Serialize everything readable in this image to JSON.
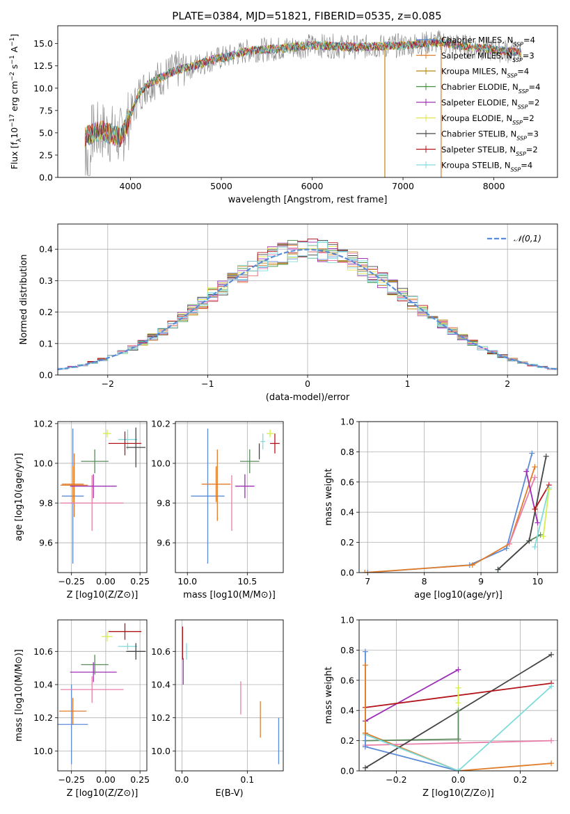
{
  "figure_title": "PLATE=0384, MJD=51821, FIBERID=0535, z=0.085",
  "colors": {
    "chabrier_miles": "#5b8bd6",
    "salpeter_miles": "#e07b28",
    "kroupa_miles": "#b8860b",
    "chabrier_elodie": "#3f8f3f",
    "salpeter_elodie": "#9d2fb5",
    "kroupa_elodie": "#e3e34a",
    "chabrier_stelib": "#444444",
    "salpeter_stelib": "#b3141a",
    "kroupa_stelib": "#7fdbdb",
    "pink": "#e87ea8",
    "lime": "#d4ee4a",
    "darkgreen": "#5a8a5a",
    "data_gray": "#7f7f7f"
  },
  "chart_data": [
    {
      "id": "spectrum",
      "type": "line",
      "title": "PLATE=0384, MJD=51821, FIBERID=0535, z=0.085",
      "xlabel": "wavelength [Angstrom, rest frame]",
      "ylabel": "Flux [f_λ10^-17 erg cm^-2 s^-1 A^-1]",
      "xlim": [
        3200,
        8700
      ],
      "ylim": [
        0,
        17
      ],
      "xticks": [
        "4000",
        "5000",
        "6000",
        "7000",
        "8000"
      ],
      "yticks": [
        "0.0",
        "2.5",
        "5.0",
        "7.5",
        "10.0",
        "12.5",
        "15.0"
      ],
      "legend": {
        "position": "upper right",
        "entries": [
          "Chabrier MILES, N_SSP=4",
          "Salpeter MILES, N_SSP=3",
          "Kroupa MILES, N_SSP=4",
          "Chabrier ELODIE, N_SSP=4",
          "Salpeter ELODIE, N_SSP=2",
          "Kroupa ELODIE, N_SSP=2",
          "Chabrier STELIB, N_SSP=3",
          "Salpeter STELIB, N_SSP=2",
          "Kroupa STELIB, N_SSP=4"
        ]
      },
      "continuum": {
        "x": [
          3500,
          3600,
          3700,
          3800,
          3900,
          4000,
          4100,
          4200,
          4300,
          4500,
          4700,
          4900,
          5100,
          5300,
          5600,
          6000,
          6500,
          7000,
          7400,
          7600,
          8000,
          8300
        ],
        "y": [
          4.5,
          5.0,
          5.2,
          4.8,
          4.5,
          7.0,
          9.5,
          10.5,
          11.0,
          12.0,
          12.5,
          13.2,
          13.6,
          14.2,
          14.4,
          14.8,
          14.6,
          14.8,
          15.2,
          14.8,
          14.3,
          14.0
        ]
      },
      "spikes_x": [
        6800,
        7420
      ]
    },
    {
      "id": "residuals",
      "type": "histogram",
      "xlabel": "(data-model)/error",
      "ylabel": "Normed distribution",
      "xlim": [
        -2.5,
        2.5
      ],
      "ylim": [
        0,
        0.48
      ],
      "xticks": [
        "−2",
        "−1",
        "0",
        "1",
        "2"
      ],
      "yticks": [
        "0.0",
        "0.1",
        "0.2",
        "0.3",
        "0.4"
      ],
      "legend": [
        "𝒩(0,1)"
      ],
      "bin_width": 0.1
    },
    {
      "id": "age_vs_Z",
      "type": "scatter",
      "xlabel": "Z [log10(Z/Z⊙)]",
      "ylabel": "age  [log10(age/yr)]",
      "xlim": [
        -0.35,
        0.3
      ],
      "ylim": [
        9.45,
        10.21
      ],
      "xticks": [
        "−0.25",
        "0.00",
        "0.25"
      ],
      "yticks": [
        "9.6",
        "9.8",
        "10.0",
        "10.2"
      ],
      "points": [
        {
          "c": "chabrier_miles",
          "x": -0.24,
          "y": 9.835,
          "xe": 0.08,
          "ye": 0.34
        },
        {
          "c": "salpeter_miles",
          "x": -0.24,
          "y": 9.895,
          "xe": 0.08,
          "ye": 0.09
        },
        {
          "c": "salpeter_miles",
          "x": -0.23,
          "y": 9.89,
          "xe": 0.1,
          "ye": 0.16
        },
        {
          "c": "pink",
          "x": -0.1,
          "y": 9.8,
          "xe": 0.23,
          "ye": 0.14
        },
        {
          "c": "salpeter_elodie",
          "x": -0.09,
          "y": 9.885,
          "xe": 0.17,
          "ye": 0.06
        },
        {
          "c": "darkgreen",
          "x": -0.08,
          "y": 10.01,
          "xe": 0.1,
          "ye": 0.06
        },
        {
          "c": "lime",
          "x": 0.01,
          "y": 10.15,
          "xe": 0.03,
          "ye": 0.02
        },
        {
          "c": "kroupa_stelib",
          "x": 0.16,
          "y": 10.12,
          "xe": 0.07,
          "ye": 0.05
        },
        {
          "c": "salpeter_stelib",
          "x": 0.14,
          "y": 10.1,
          "xe": 0.12,
          "ye": 0.06
        },
        {
          "c": "chabrier_stelib",
          "x": 0.22,
          "y": 10.08,
          "xe": 0.07,
          "ye": 0.1
        }
      ]
    },
    {
      "id": "age_vs_mass",
      "type": "scatter",
      "xlabel": "mass [log10(M/M⊙)]",
      "ylabel": "",
      "xlim": [
        9.9,
        10.8
      ],
      "ylim": [
        9.45,
        10.21
      ],
      "xticks": [
        "10.0",
        "10.5"
      ],
      "yticks": [
        "9.6",
        "9.8",
        "10.0",
        "10.2"
      ],
      "points": [
        {
          "c": "chabrier_miles",
          "x": 10.17,
          "y": 9.835,
          "xe": 0.14,
          "ye": 0.34
        },
        {
          "c": "salpeter_miles",
          "x": 10.24,
          "y": 9.895,
          "xe": 0.12,
          "ye": 0.09
        },
        {
          "c": "salpeter_miles",
          "x": 10.25,
          "y": 9.89,
          "xe": 0.0,
          "ye": 0.18
        },
        {
          "c": "pink",
          "x": 10.37,
          "y": 9.8,
          "xe": 0.0,
          "ye": 0.14
        },
        {
          "c": "salpeter_elodie",
          "x": 10.48,
          "y": 9.885,
          "xe": 0.08,
          "ye": 0.06
        },
        {
          "c": "darkgreen",
          "x": 10.52,
          "y": 10.01,
          "xe": 0.08,
          "ye": 0.06
        },
        {
          "c": "chabrier_stelib",
          "x": 10.6,
          "y": 10.06,
          "xe": 0.0,
          "ye": 0.04
        },
        {
          "c": "kroupa_stelib",
          "x": 10.63,
          "y": 10.11,
          "xe": 0.02,
          "ye": 0.04
        },
        {
          "c": "lime",
          "x": 10.69,
          "y": 10.15,
          "xe": 0.03,
          "ye": 0.02
        },
        {
          "c": "salpeter_stelib",
          "x": 10.73,
          "y": 10.1,
          "xe": 0.04,
          "ye": 0.05
        }
      ]
    },
    {
      "id": "mass_weight_vs_age",
      "type": "line",
      "xlabel": "age  [log10(age/yr)]",
      "ylabel": "mass weight",
      "xlim": [
        6.85,
        10.35
      ],
      "ylim": [
        0,
        1.0
      ],
      "xticks": [
        "7",
        "8",
        "9",
        "10"
      ],
      "yticks": [
        "0.0",
        "0.2",
        "0.4",
        "0.6",
        "0.8",
        "1.0"
      ],
      "series": [
        {
          "c": "chabrier_miles",
          "x": [
            7.0,
            8.8,
            9.45,
            9.9
          ],
          "y": [
            0.0,
            0.05,
            0.16,
            0.79
          ]
        },
        {
          "c": "salpeter_miles",
          "x": [
            6.95,
            8.85,
            9.5,
            9.95
          ],
          "y": [
            0.0,
            0.05,
            0.19,
            0.7
          ]
        },
        {
          "c": "pink",
          "x": [
            9.5,
            9.95
          ],
          "y": [
            0.19,
            0.63
          ]
        },
        {
          "c": "salpeter_elodie",
          "x": [
            9.8,
            10.0
          ],
          "y": [
            0.67,
            0.33
          ]
        },
        {
          "c": "darkgreen",
          "x": [
            9.3,
            9.85,
            10.05
          ],
          "y": [
            0.02,
            0.21,
            0.25
          ]
        },
        {
          "c": "chabrier_stelib",
          "x": [
            9.3,
            9.85,
            10.15
          ],
          "y": [
            0.02,
            0.21,
            0.77
          ]
        },
        {
          "c": "salpeter_stelib",
          "x": [
            9.95,
            10.2
          ],
          "y": [
            0.42,
            0.58
          ]
        },
        {
          "c": "kroupa_stelib",
          "x": [
            9.95,
            10.2
          ],
          "y": [
            0.17,
            0.56
          ]
        },
        {
          "c": "lime",
          "x": [
            10.1,
            10.2
          ],
          "y": [
            0.24,
            0.55
          ]
        }
      ]
    },
    {
      "id": "mass_vs_Z",
      "type": "scatter",
      "xlabel": "Z [log10(Z/Z⊙)]",
      "ylabel": "mass [log10(M/M⊙)]",
      "xlim": [
        -0.35,
        0.3
      ],
      "ylim": [
        9.88,
        10.79
      ],
      "xticks": [
        "−0.25",
        "0.00",
        "0.25"
      ],
      "yticks": [
        "10.0",
        "10.2",
        "10.4",
        "10.6"
      ],
      "points": [
        {
          "c": "chabrier_miles",
          "x": -0.25,
          "y": 10.16,
          "xe": 0.12,
          "ye": 0.24
        },
        {
          "c": "salpeter_miles",
          "x": -0.24,
          "y": 10.24,
          "xe": 0.1,
          "ye": 0.08
        },
        {
          "c": "pink",
          "x": -0.1,
          "y": 10.37,
          "xe": 0.23,
          "ye": 0.08
        },
        {
          "c": "salpeter_elodie",
          "x": -0.09,
          "y": 10.475,
          "xe": 0.17,
          "ye": 0.06
        },
        {
          "c": "darkgreen",
          "x": -0.08,
          "y": 10.52,
          "xe": 0.1,
          "ye": 0.06
        },
        {
          "c": "lime",
          "x": 0.01,
          "y": 10.69,
          "xe": 0.04,
          "ye": 0.03
        },
        {
          "c": "kroupa_stelib",
          "x": 0.16,
          "y": 10.63,
          "xe": 0.07,
          "ye": 0.02
        },
        {
          "c": "salpeter_stelib",
          "x": 0.14,
          "y": 10.72,
          "xe": 0.12,
          "ye": 0.05
        },
        {
          "c": "chabrier_stelib",
          "x": 0.22,
          "y": 10.6,
          "xe": 0.07,
          "ye": 0.05
        }
      ]
    },
    {
      "id": "mass_vs_ebv",
      "type": "scatter",
      "xlabel": "E(B-V)",
      "ylabel": "",
      "xlim": [
        -0.01,
        0.155
      ],
      "ylim": [
        9.88,
        10.79
      ],
      "xticks": [
        "0.0",
        "0.1"
      ],
      "yticks": [
        "10.0",
        "10.2",
        "10.4",
        "10.6"
      ],
      "points": [
        {
          "c": "salpeter_stelib",
          "x": 0.001,
          "y": 10.65,
          "xe": 0.0,
          "ye": 0.1
        },
        {
          "c": "salpeter_elodie",
          "x": 0.002,
          "y": 10.48,
          "xe": 0.0,
          "ye": 0.08
        },
        {
          "c": "kroupa_stelib",
          "x": 0.007,
          "y": 10.6,
          "xe": 0.0,
          "ye": 0.05
        },
        {
          "c": "pink",
          "x": 0.09,
          "y": 10.32,
          "xe": 0.0,
          "ye": 0.1
        },
        {
          "c": "salpeter_miles",
          "x": 0.12,
          "y": 10.19,
          "xe": 0.0,
          "ye": 0.11
        },
        {
          "c": "chabrier_miles",
          "x": 0.148,
          "y": 10.06,
          "xe": 0.0,
          "ye": 0.14
        }
      ]
    },
    {
      "id": "mass_weight_vs_Z",
      "type": "line",
      "xlabel": "Z [log10(Z/Z⊙)]",
      "ylabel": "mass weight",
      "xlim": [
        -0.32,
        0.32
      ],
      "ylim": [
        0,
        1.0
      ],
      "xticks": [
        "−0.2",
        "0.0",
        "0.2"
      ],
      "yticks": [
        "0.0",
        "0.2",
        "0.4",
        "0.6",
        "0.8",
        "1.0"
      ],
      "series": [
        {
          "c": "chabrier_miles",
          "x": [
            -0.3,
            0.0
          ],
          "y": [
            0.16,
            0.0
          ]
        },
        {
          "c": "salpeter_miles",
          "x": [
            -0.3,
            0.0,
            0.3
          ],
          "y": [
            0.25,
            0.0,
            0.05
          ]
        },
        {
          "c": "pink",
          "x": [
            -0.3,
            0.3
          ],
          "y": [
            0.17,
            0.2
          ]
        },
        {
          "c": "salpeter_elodie",
          "x": [
            -0.3,
            0.0
          ],
          "y": [
            0.33,
            0.67
          ]
        },
        {
          "c": "darkgreen",
          "x": [
            -0.3,
            0.0
          ],
          "y": [
            0.2,
            0.21
          ]
        },
        {
          "c": "chabrier_stelib",
          "x": [
            -0.3,
            0.3
          ],
          "y": [
            0.02,
            0.77
          ]
        },
        {
          "c": "salpeter_stelib",
          "x": [
            -0.3,
            0.3
          ],
          "y": [
            0.42,
            0.58
          ]
        },
        {
          "c": "kroupa_stelib",
          "x": [
            -0.3,
            0.0,
            0.3
          ],
          "y": [
            0.24,
            0.0,
            0.56
          ]
        },
        {
          "c": "chabrier_miles",
          "x": [
            -0.3,
            -0.3
          ],
          "y": [
            0.16,
            0.79
          ]
        },
        {
          "c": "salpeter_miles",
          "x": [
            -0.3,
            -0.3
          ],
          "y": [
            0.25,
            0.7
          ]
        },
        {
          "c": "darkgreen",
          "x": [
            0.0,
            0.0
          ],
          "y": [
            0.21,
            0.4
          ]
        },
        {
          "c": "lime",
          "x": [
            0.0,
            0.0
          ],
          "y": [
            0.45,
            0.55
          ]
        }
      ]
    }
  ]
}
